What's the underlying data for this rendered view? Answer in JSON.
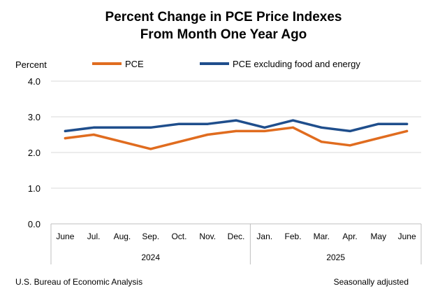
{
  "chart_data": {
    "type": "line",
    "title_line1": "Percent Change in PCE Price Indexes",
    "title_line2": "From Month One Year Ago",
    "ylabel": "Percent",
    "ylim": [
      0,
      4
    ],
    "yticks": [
      "0.0",
      "1.0",
      "2.0",
      "3.0",
      "4.0"
    ],
    "ytick_values": [
      0,
      1,
      2,
      3,
      4
    ],
    "categories": [
      "June",
      "Jul.",
      "Aug.",
      "Sep.",
      "Oct.",
      "Nov.",
      "Dec.",
      "Jan.",
      "Feb.",
      "Mar.",
      "Apr.",
      "May",
      "June"
    ],
    "year_groups": [
      {
        "label": "2024",
        "count": 7
      },
      {
        "label": "2025",
        "count": 6
      }
    ],
    "series": [
      {
        "name": "PCE",
        "color": "#E06C1F",
        "values": [
          2.4,
          2.5,
          2.3,
          2.1,
          2.3,
          2.5,
          2.6,
          2.6,
          2.7,
          2.3,
          2.2,
          2.4,
          2.6
        ]
      },
      {
        "name": "PCE excluding food and energy",
        "color": "#1F4E8C",
        "values": [
          2.6,
          2.7,
          2.7,
          2.7,
          2.8,
          2.8,
          2.9,
          2.7,
          2.9,
          2.7,
          2.6,
          2.8,
          2.8
        ]
      }
    ],
    "grid": true,
    "legend_position": "top"
  },
  "footer": {
    "source": "U.S. Bureau of Economic Analysis",
    "note": "Seasonally adjusted"
  }
}
